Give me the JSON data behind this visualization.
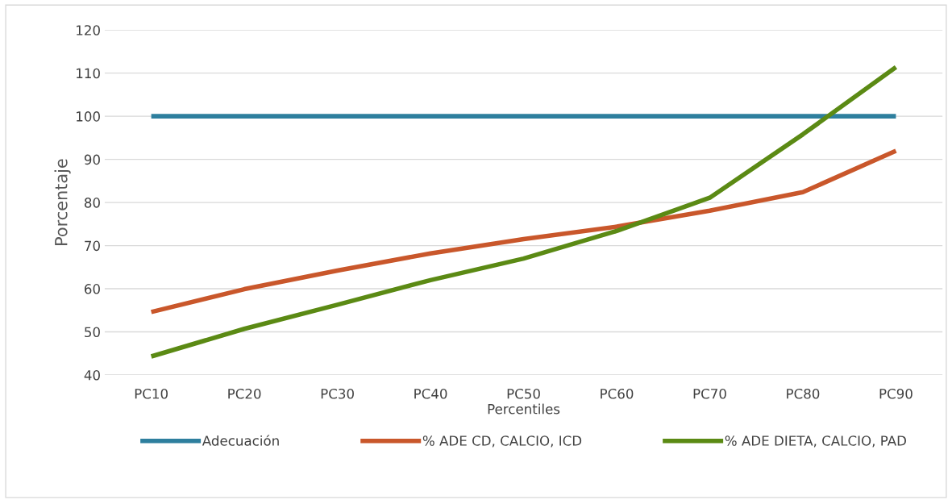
{
  "chart_data": {
    "type": "line",
    "xlabel": "Percentiles",
    "ylabel": "Porcentaje",
    "categories": [
      "PC10",
      "PC20",
      "PC30",
      "PC40",
      "PC50",
      "PC60",
      "PC70",
      "PC80",
      "PC90"
    ],
    "series": [
      {
        "name": "Adecuación",
        "color": "#2e7f9e",
        "values": [
          100,
          100,
          100,
          100,
          100,
          100,
          100,
          100,
          100
        ]
      },
      {
        "name": "% ADE CD, CALCIO, ICD",
        "color": "#c9572b",
        "values": [
          54.6,
          59.9,
          64.2,
          68.2,
          71.5,
          74.4,
          78.1,
          82.4,
          92.0
        ]
      },
      {
        "name": "% ADE DIETA, CALCIO, PAD",
        "color": "#5b8a14",
        "values": [
          44.3,
          50.7,
          56.3,
          62.0,
          67.0,
          73.4,
          81.1,
          95.8,
          111.4
        ]
      }
    ],
    "ylim": [
      40,
      120
    ],
    "yticks": [
      40,
      50,
      60,
      70,
      80,
      90,
      100,
      110,
      120
    ],
    "grid": "y",
    "legend": "bottom",
    "marker": "none",
    "line_style": "solid"
  }
}
